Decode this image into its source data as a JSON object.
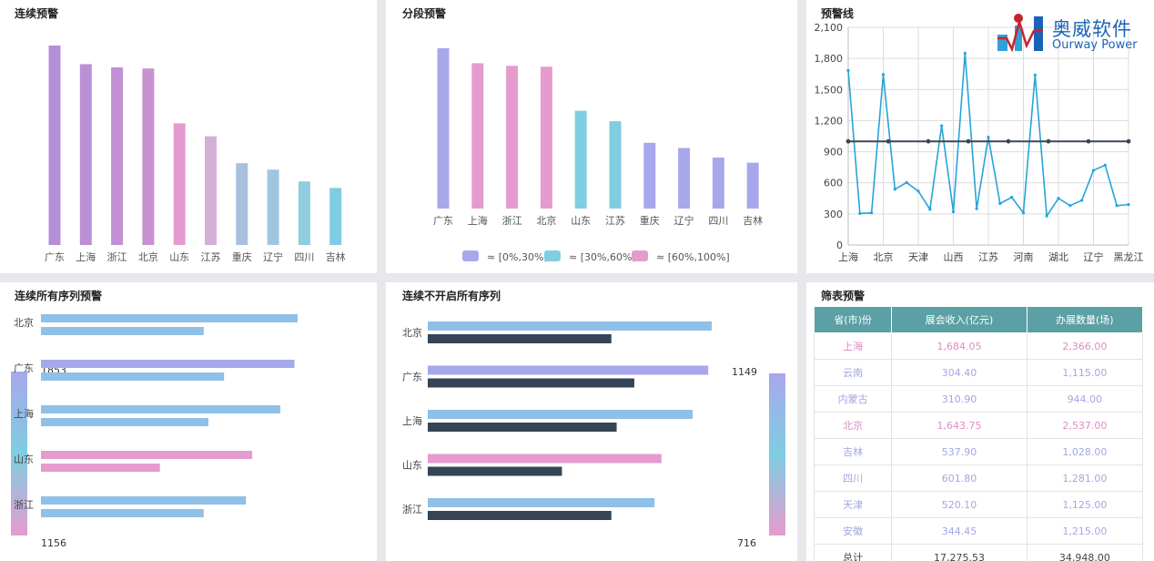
{
  "colors": {
    "purple": "#b48fd8",
    "pink": "#e59bcf",
    "cyan": "#7fcde1",
    "lavender": "#a7a8ec",
    "lightblue": "#8fc0e8",
    "dark": "#354556",
    "line": "#26a4d8"
  },
  "panel1": {
    "title": "连续预警",
    "chart_data": {
      "type": "bar",
      "categories": [
        "广东",
        "上海",
        "浙江",
        "北京",
        "山东",
        "江苏",
        "重庆",
        "辽宁",
        "四川",
        "吉林"
      ],
      "values": [
        1853,
        1680,
        1650,
        1640,
        1130,
        1010,
        760,
        700,
        590,
        530
      ],
      "colors": [
        "#b48fd8",
        "#bb8fd6",
        "#c18fd3",
        "#c891cf",
        "#e59bcf",
        "#d4b0d8",
        "#a8c0dc",
        "#a0c6de",
        "#8fcde0",
        "#7fcde1"
      ]
    }
  },
  "panel2": {
    "title": "分段预警",
    "chart_data": {
      "type": "bar",
      "categories": [
        "广东",
        "上海",
        "浙江",
        "北京",
        "山东",
        "江苏",
        "重庆",
        "辽宁",
        "四川",
        "吉林"
      ],
      "values": [
        1853,
        1680,
        1650,
        1640,
        1130,
        1010,
        760,
        700,
        590,
        530
      ],
      "bands": [
        0,
        2,
        2,
        2,
        1,
        1,
        0,
        0,
        0,
        0
      ]
    },
    "legend": [
      {
        "label": "≈ [0%,30%)",
        "color": "#a7a8ec"
      },
      {
        "label": "≈ [30%,60%)",
        "color": "#7fcde1"
      },
      {
        "label": "≈ [60%,100%]",
        "color": "#e59bcf"
      }
    ]
  },
  "panel3": {
    "title": "预警线",
    "logo": {
      "cn": "奥威软件",
      "en": "Ourway Power"
    },
    "chart_data": {
      "type": "line",
      "ylim": [
        0,
        2100
      ],
      "yticks": [
        "0",
        "300",
        "600",
        "900",
        "1,200",
        "1,500",
        "1,800",
        "2,100"
      ],
      "xticks": [
        "上海",
        "北京",
        "天津",
        "山西",
        "江苏",
        "河南",
        "湖北",
        "辽宁",
        "黑龙江"
      ],
      "series": [
        {
          "values": [
            1684,
            304,
            310,
            1644,
            538,
            602,
            520,
            344,
            1150,
            320,
            1850,
            350,
            1040,
            400,
            460,
            310,
            1640,
            280,
            450,
            380,
            430,
            720,
            770,
            380,
            390
          ]
        },
        {
          "values": [
            1000,
            1000,
            1000,
            1000,
            1000,
            1000,
            1000,
            1000
          ]
        }
      ]
    }
  },
  "panel4": {
    "title": "连续所有序列预警",
    "categories": [
      "北京",
      "广东",
      "上海",
      "山东",
      "浙江"
    ],
    "gauge": {
      "max": "1853",
      "min": "1156"
    },
    "chart_data": {
      "type": "bar",
      "categories": [
        "北京",
        "广东",
        "上海",
        "山东",
        "浙江"
      ],
      "series": [
        {
          "values": [
            1640,
            1620,
            1530,
            1350,
            1310
          ]
        },
        {
          "values": [
            1040,
            1170,
            1070,
            760,
            1040
          ]
        }
      ],
      "colors": [
        [
          "#8fc0e8",
          "#8fc0e8"
        ],
        [
          "#a7a8ec",
          "#8fc0e8"
        ],
        [
          "#8fc0e8",
          "#8fc0e8"
        ],
        [
          "#e59bcf",
          "#e59bcf"
        ],
        [
          "#8fc0e8",
          "#8fc0e8"
        ]
      ]
    }
  },
  "panel5": {
    "title": "连续不开启所有序列",
    "categories": [
      "北京",
      "广东",
      "上海",
      "山东",
      "浙江"
    ],
    "gauge": {
      "max": "1149",
      "min": "716"
    },
    "chart_data": {
      "type": "bar",
      "categories": [
        "北京",
        "广东",
        "上海",
        "山东",
        "浙江"
      ],
      "series": [
        {
          "values": [
            1640,
            1620,
            1530,
            1350,
            1310
          ]
        },
        {
          "values": [
            1040,
            1170,
            1070,
            760,
            1040
          ]
        }
      ],
      "colors": [
        "#8fc0e8",
        "#a7a8ec",
        "#8fc0e8",
        "#e59bcf",
        "#8fc0e8"
      ]
    }
  },
  "panel6": {
    "title": "筛表预警",
    "headers": [
      "省(市)份",
      "展会收入(亿元)",
      "办展数量(场)"
    ],
    "rows": [
      {
        "name": "上海",
        "income": "1,684.05",
        "count": "2,366.00",
        "color": "#e08cc6"
      },
      {
        "name": "云南",
        "income": "304.40",
        "count": "1,115.00",
        "color": "#a3a6e4"
      },
      {
        "name": "内蒙古",
        "income": "310.90",
        "count": "944.00",
        "color": "#a3a6e4"
      },
      {
        "name": "北京",
        "income": "1,643.75",
        "count": "2,537.00",
        "color": "#e08cc6"
      },
      {
        "name": "吉林",
        "income": "537.90",
        "count": "1,028.00",
        "color": "#a3a6e4"
      },
      {
        "name": "四川",
        "income": "601.80",
        "count": "1,281.00",
        "color": "#a3a6e4"
      },
      {
        "name": "天津",
        "income": "520.10",
        "count": "1,125.00",
        "color": "#a3a6e4"
      },
      {
        "name": "安徽",
        "income": "344.45",
        "count": "1,215.00",
        "color": "#a3a6e4"
      }
    ],
    "total": {
      "name": "总计",
      "income": "17,275.53",
      "count": "34,948.00"
    }
  }
}
